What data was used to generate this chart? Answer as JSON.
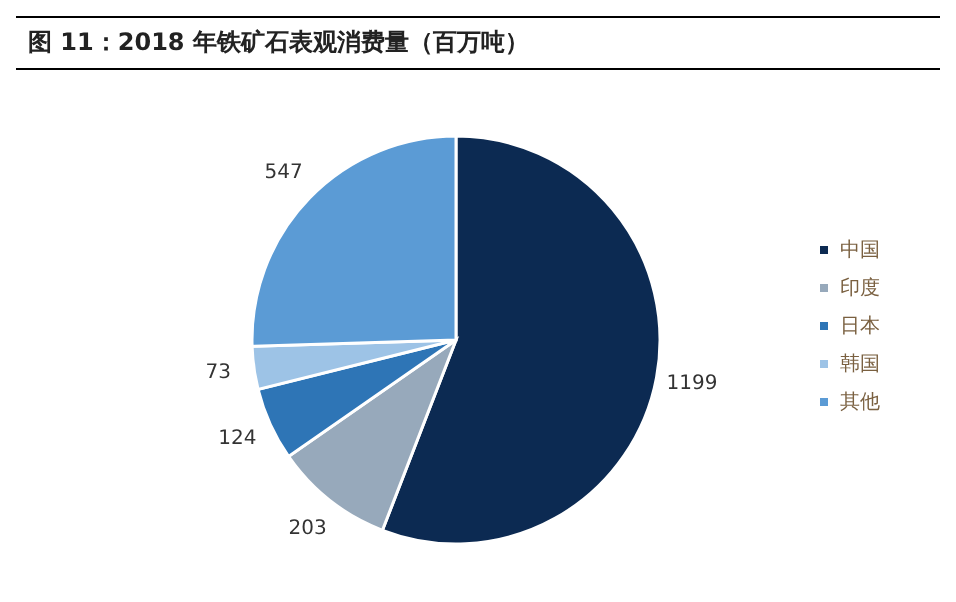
{
  "chart_data": {
    "type": "pie",
    "title": "图 11：2018 年铁矿石表观消费量（百万吨）",
    "categories": [
      "中国",
      "印度",
      "日本",
      "韩国",
      "其他"
    ],
    "values": [
      1199,
      203,
      124,
      73,
      547
    ],
    "colors": [
      "#0c2a52",
      "#97a9bb",
      "#2e75b6",
      "#9dc3e6",
      "#5b9bd5"
    ],
    "data_labels": true,
    "legend": "right"
  }
}
